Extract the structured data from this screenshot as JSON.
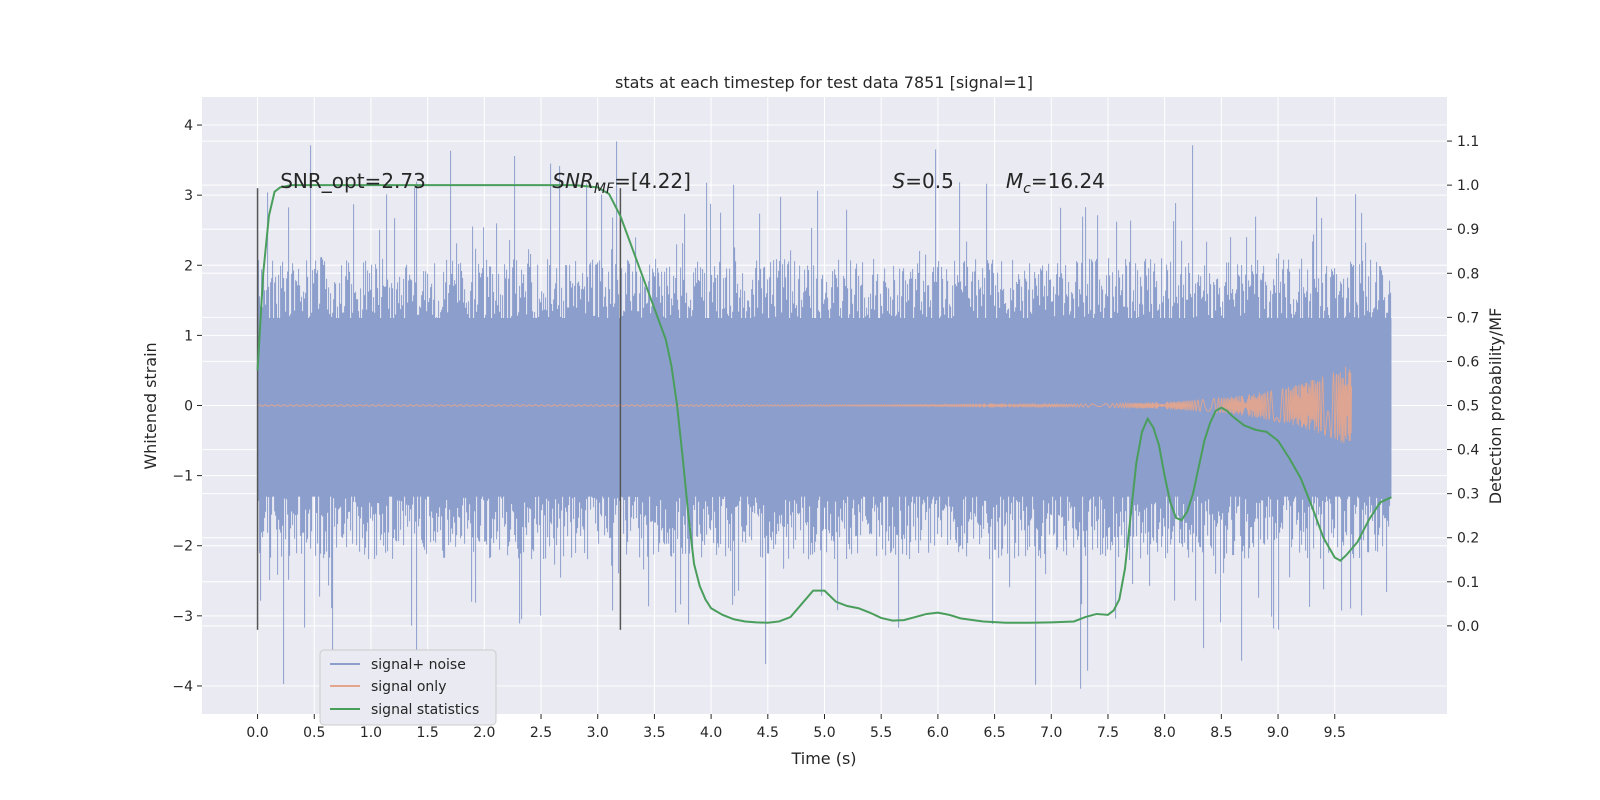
{
  "chart_data": {
    "type": "line",
    "title": "stats at each timestep for test data 7851 [signal=1]",
    "xlabel": "Time (s)",
    "ylabel": "Whitened strain",
    "ylabel_right": "Detection probability/MF",
    "xlim": [
      -0.49,
      10.49
    ],
    "ylim": [
      -4.4,
      4.4
    ],
    "ylim_right": [
      -0.2,
      1.2
    ],
    "x_ticks": [
      0.0,
      0.5,
      1.0,
      1.5,
      2.0,
      2.5,
      3.0,
      3.5,
      4.0,
      4.5,
      5.0,
      5.5,
      6.0,
      6.5,
      7.0,
      7.5,
      8.0,
      8.5,
      9.0,
      9.5
    ],
    "x_tick_labels": [
      "0.0",
      "0.5",
      "1.0",
      "1.5",
      "2.0",
      "2.5",
      "3.0",
      "3.5",
      "4.0",
      "4.5",
      "5.0",
      "5.5",
      "6.0",
      "6.5",
      "7.0",
      "7.5",
      "8.0",
      "8.5",
      "9.0",
      "9.5"
    ],
    "y_ticks": [
      4,
      3,
      2,
      1,
      0,
      -1,
      -2,
      -3,
      -4
    ],
    "y_tick_labels": [
      "4",
      "3",
      "2",
      "1",
      "0",
      "−1",
      "−2",
      "−3",
      "−4"
    ],
    "y_right_ticks": [
      1.1,
      1.0,
      0.9,
      0.8,
      0.7,
      0.6,
      0.5,
      0.4,
      0.3,
      0.2,
      0.1,
      0.0
    ],
    "y_right_tick_labels": [
      "1.1",
      "1.0",
      "0.9",
      "0.8",
      "0.7",
      "0.6",
      "0.5",
      "0.4",
      "0.3",
      "0.2",
      "0.1",
      "0.0"
    ],
    "grid": true,
    "legend_placement": "lower-left",
    "annotations": [
      {
        "text": "SNR_opt=2.73",
        "x": 0.2
      },
      {
        "main": "SNR",
        "sub": "MF",
        "rest": "=[4.22]",
        "x": 2.6
      },
      {
        "main": "S",
        "sub": "",
        "rest": "=0.5",
        "x": 5.6
      },
      {
        "main": "M",
        "sub": "c",
        "rest": "=16.24",
        "x": 6.6
      }
    ],
    "annotation_y": 3.1,
    "vertical_lines": [
      {
        "x": 0.0,
        "y_range": [
          -3.2,
          3.1
        ]
      },
      {
        "x": 3.2,
        "y_range": [
          -3.2,
          3.1
        ]
      }
    ],
    "series": [
      {
        "name": "signal+ noise",
        "color": "#8c9fcc",
        "axis": "left",
        "x_range": [
          0.0,
          10.0
        ],
        "band_core": [
          -1.3,
          1.25
        ],
        "typical_max": 2.1,
        "typical_min": -2.2,
        "peak_max": 3.95,
        "peak_min": -4.05
      },
      {
        "name": "signal only",
        "color": "#e5a58c",
        "axis": "left",
        "x_range": [
          0.0,
          9.65
        ],
        "peak_amplitude": 0.6
      },
      {
        "name": "signal statistics",
        "color": "#4a9e5c",
        "axis": "right",
        "x": [
          0.0,
          0.05,
          0.1,
          0.15,
          0.2,
          0.3,
          0.5,
          1.0,
          1.5,
          2.0,
          2.5,
          2.8,
          3.0,
          3.1,
          3.2,
          3.3,
          3.4,
          3.5,
          3.6,
          3.65,
          3.7,
          3.75,
          3.8,
          3.85,
          3.9,
          3.95,
          4.0,
          4.1,
          4.2,
          4.3,
          4.4,
          4.5,
          4.6,
          4.7,
          4.8,
          4.9,
          5.0,
          5.1,
          5.2,
          5.3,
          5.4,
          5.5,
          5.6,
          5.7,
          5.8,
          5.9,
          6.0,
          6.1,
          6.2,
          6.4,
          6.6,
          6.8,
          7.0,
          7.2,
          7.3,
          7.4,
          7.5,
          7.55,
          7.6,
          7.65,
          7.7,
          7.75,
          7.8,
          7.85,
          7.9,
          7.95,
          8.0,
          8.05,
          8.1,
          8.15,
          8.2,
          8.25,
          8.3,
          8.35,
          8.4,
          8.45,
          8.5,
          8.55,
          8.6,
          8.7,
          8.8,
          8.9,
          9.0,
          9.1,
          9.2,
          9.3,
          9.4,
          9.5,
          9.55,
          9.6,
          9.7,
          9.8,
          9.9,
          10.0
        ],
        "y": [
          0.58,
          0.8,
          0.93,
          0.985,
          0.995,
          1.0,
          1.0,
          1.0,
          1.0,
          1.0,
          1.0,
          1.0,
          0.995,
          0.98,
          0.93,
          0.86,
          0.79,
          0.72,
          0.65,
          0.59,
          0.5,
          0.38,
          0.25,
          0.14,
          0.09,
          0.06,
          0.04,
          0.025,
          0.015,
          0.01,
          0.008,
          0.007,
          0.01,
          0.02,
          0.05,
          0.08,
          0.08,
          0.055,
          0.045,
          0.04,
          0.03,
          0.018,
          0.012,
          0.013,
          0.02,
          0.027,
          0.03,
          0.025,
          0.017,
          0.01,
          0.007,
          0.007,
          0.008,
          0.01,
          0.02,
          0.027,
          0.025,
          0.035,
          0.06,
          0.13,
          0.25,
          0.37,
          0.44,
          0.47,
          0.45,
          0.41,
          0.34,
          0.28,
          0.245,
          0.24,
          0.26,
          0.3,
          0.36,
          0.42,
          0.46,
          0.488,
          0.495,
          0.488,
          0.475,
          0.455,
          0.445,
          0.44,
          0.42,
          0.38,
          0.335,
          0.27,
          0.2,
          0.155,
          0.148,
          0.16,
          0.19,
          0.24,
          0.28,
          0.292
        ]
      }
    ]
  }
}
